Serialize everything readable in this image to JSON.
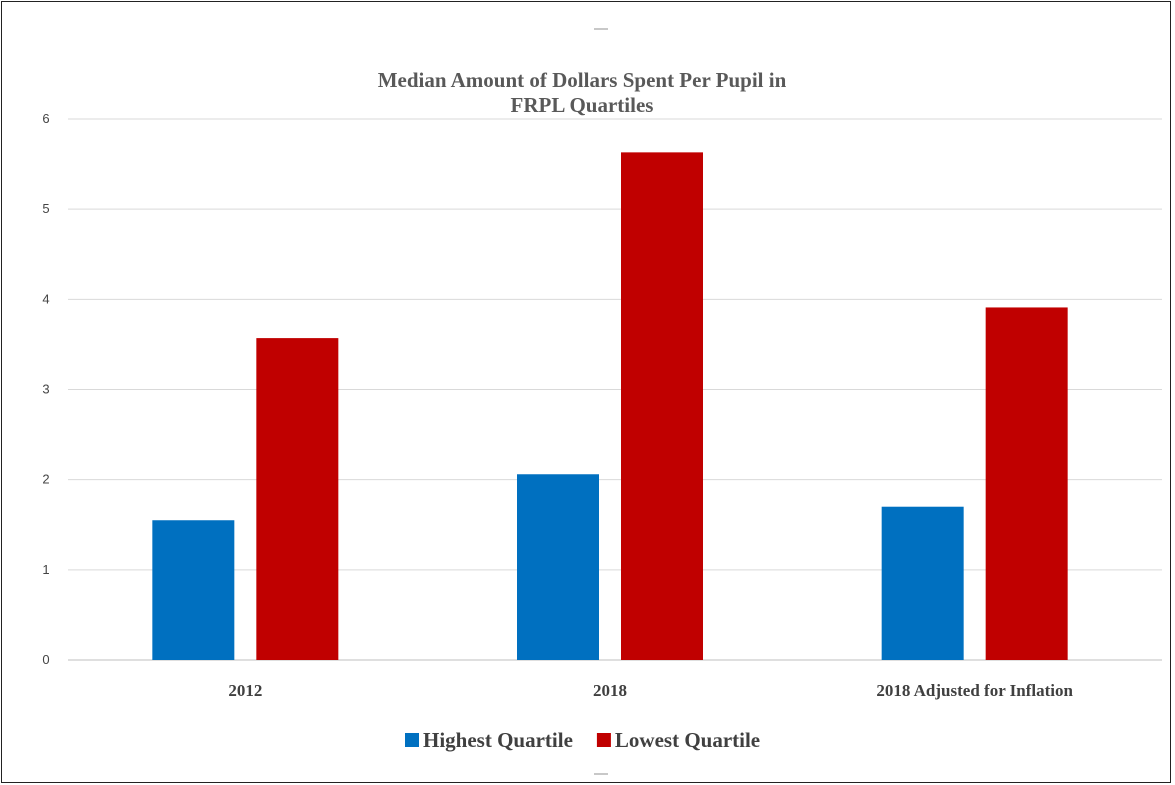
{
  "chart_data": {
    "type": "bar",
    "title_lines": [
      "Median Amount of Dollars Spent Per Pupil in",
      "FRPL Quartiles"
    ],
    "categories": [
      "2012",
      "2018",
      "2018 Adjusted for Inflation"
    ],
    "series": [
      {
        "name": "Highest Quartile",
        "color": "#0070c0",
        "values": [
          1.55,
          2.06,
          1.7
        ]
      },
      {
        "name": "Lowest Quartile",
        "color": "#c00000",
        "values": [
          3.57,
          5.63,
          3.91
        ]
      }
    ],
    "yticks": [
      "0",
      "1",
      "2",
      "3",
      "4",
      "5",
      "6"
    ],
    "ylim": [
      0,
      6
    ],
    "grid": true,
    "legend_position": "bottom"
  }
}
